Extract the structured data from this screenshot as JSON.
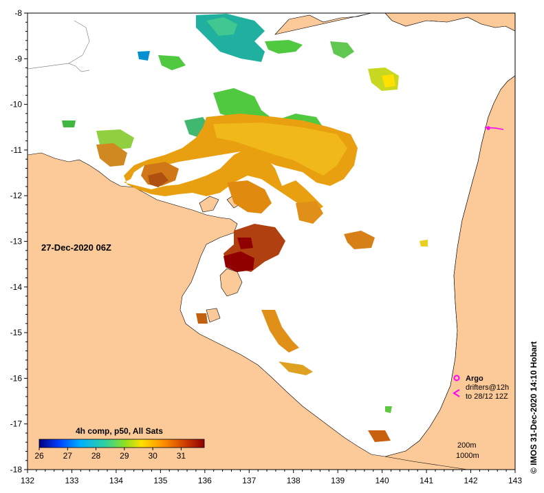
{
  "map": {
    "timestamp_label": "27-Dec-2020 06Z",
    "credit": "©  IMOS 31-Dec-2020 14:10 Hobart",
    "x_ticks": [
      "132",
      "133",
      "134",
      "135",
      "136",
      "137",
      "138",
      "139",
      "140",
      "141",
      "142",
      "143"
    ],
    "y_ticks": [
      "-8",
      "-9",
      "-10",
      "-11",
      "-12",
      "-13",
      "-14",
      "-15",
      "-16",
      "-17",
      "-18"
    ],
    "colorbar": {
      "title": "4h comp, p50, All Sats",
      "ticks": [
        "26",
        "27",
        "28",
        "29",
        "30",
        "31"
      ],
      "colors": [
        "#000080",
        "#0050ff",
        "#00c8ff",
        "#40e080",
        "#a0e020",
        "#ffe000",
        "#ff9000",
        "#d04000",
        "#900000"
      ]
    },
    "legend": {
      "argo_label": "Argo",
      "drifters_label": "drifters@12h",
      "drifters_to": "to 28/12 12Z",
      "marker_color": "#ff00ff",
      "depth_200": "200m",
      "depth_1000": "1000m"
    },
    "colors": {
      "land": "#fcc998",
      "sea": "#ffffff",
      "sst_green": "#50c840",
      "sst_cyan": "#20b0a0",
      "sst_yellow": "#f0c000",
      "sst_orange": "#e89010",
      "sst_brown": "#b05010",
      "sst_darkred": "#900000"
    }
  }
}
